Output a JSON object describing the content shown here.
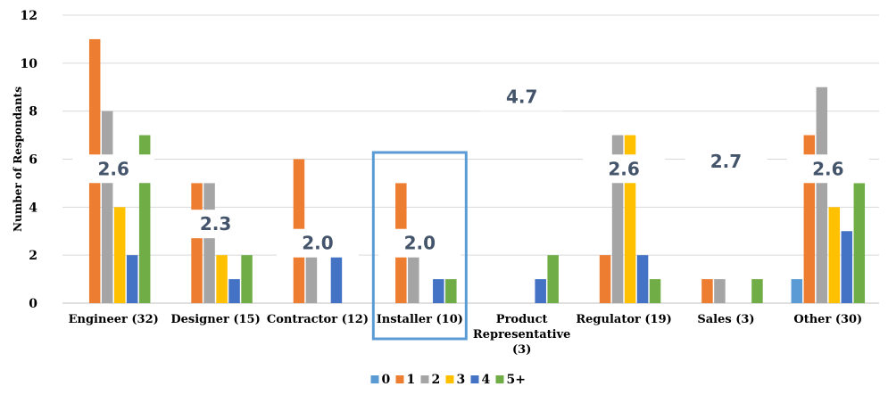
{
  "chart_data": {
    "type": "bar",
    "ylabel": "Number of Respondants",
    "ylim": [
      0,
      12
    ],
    "yticks": [
      "0",
      "2",
      "4",
      "6",
      "8",
      "10",
      "12"
    ],
    "grid": true,
    "legend_position": "bottom",
    "categories": [
      [
        "Engineer (32)"
      ],
      [
        "Designer (15)"
      ],
      [
        "Contractor (12)"
      ],
      [
        "Installer (10)"
      ],
      [
        "Product",
        "Representative",
        "(3)"
      ],
      [
        "Regulator (19)"
      ],
      [
        "Sales (3)"
      ],
      [
        "Other (30)"
      ]
    ],
    "series": [
      {
        "name": "0",
        "color": "#5b9bd5",
        "values": [
          0,
          0,
          0,
          0,
          0,
          0,
          0,
          1
        ]
      },
      {
        "name": "1",
        "color": "#ed7d31",
        "values": [
          11,
          5,
          6,
          5,
          0,
          2,
          1,
          7
        ]
      },
      {
        "name": "2",
        "color": "#a5a5a5",
        "values": [
          8,
          5,
          2,
          2,
          0,
          7,
          1,
          9
        ]
      },
      {
        "name": "3",
        "color": "#ffc000",
        "values": [
          4,
          2,
          0,
          0,
          0,
          7,
          0,
          4
        ]
      },
      {
        "name": "4",
        "color": "#4472c4",
        "values": [
          2,
          1,
          2,
          1,
          1,
          2,
          0,
          3
        ]
      },
      {
        "name": "5+",
        "color": "#70ad47",
        "values": [
          7,
          2,
          0,
          1,
          2,
          1,
          1,
          5
        ]
      }
    ],
    "averages": [
      "2.6",
      "2.3",
      "2.0",
      "2.0",
      "4.7",
      "2.6",
      "2.7",
      "2.6"
    ],
    "average_y": [
      5.6,
      3.3,
      2.5,
      2.5,
      8.6,
      5.6,
      5.9,
      5.6
    ],
    "highlighted_category": 3,
    "highlight_color": "#5b9bd5"
  }
}
